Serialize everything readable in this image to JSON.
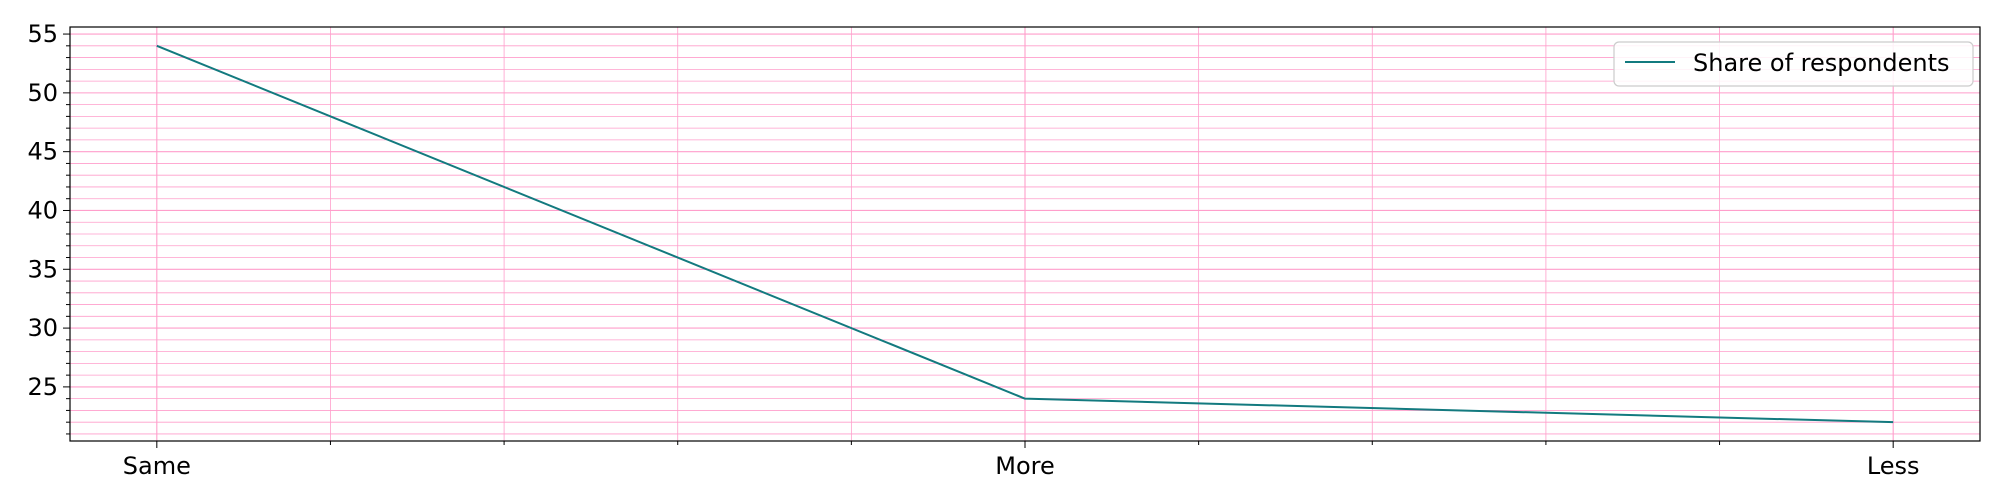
{
  "chart_data": {
    "type": "line",
    "categories": [
      "Same",
      "More",
      "Less"
    ],
    "series": [
      {
        "name": "Share of respondents",
        "values": [
          54,
          24,
          22
        ]
      }
    ],
    "title": "",
    "xlabel": "",
    "ylabel": "",
    "ylim": [
      20.4,
      55.6
    ],
    "yticks": [
      25,
      30,
      35,
      40,
      45,
      50,
      55
    ],
    "grid": true,
    "legend_position": "top-right",
    "colors": {
      "line": "#137a7f",
      "grid": "#ff9ecb",
      "axis": "#000000"
    }
  }
}
